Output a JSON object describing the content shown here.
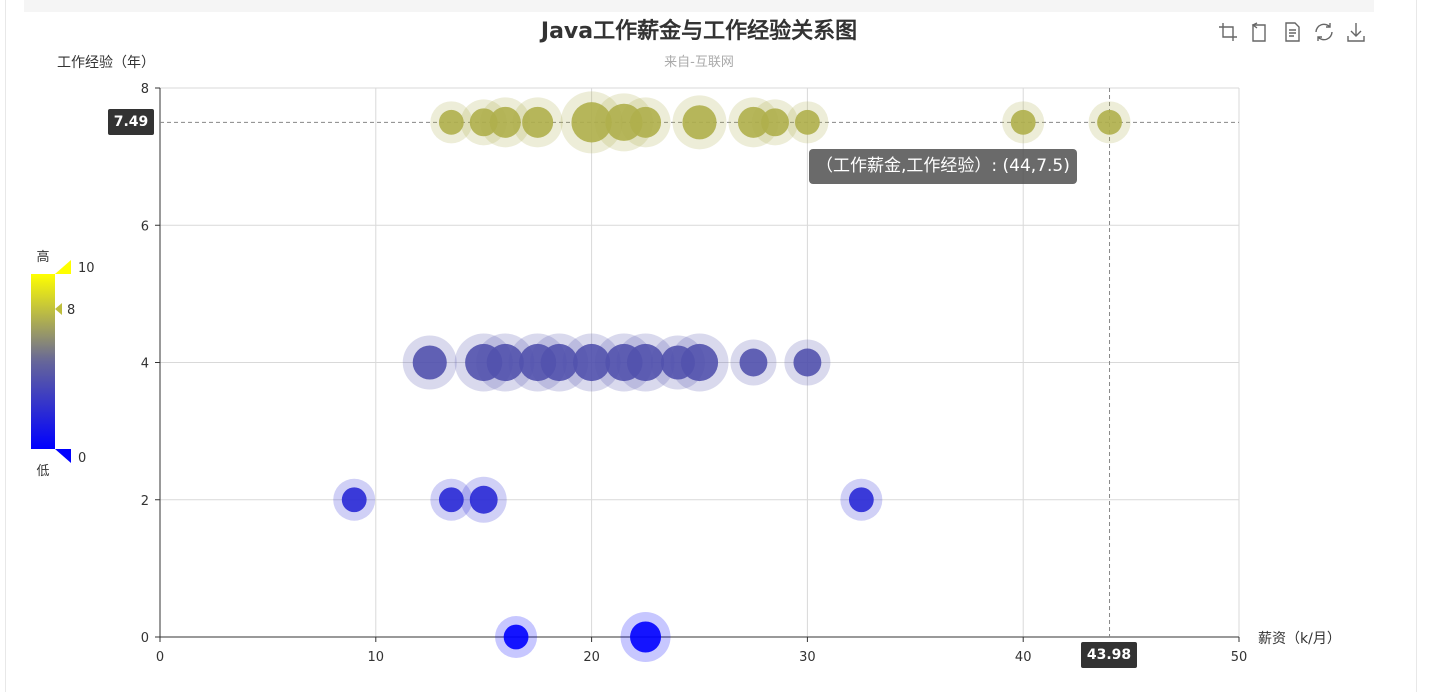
{
  "chart_data": {
    "type": "scatter",
    "title": "Java工作薪金与工作经验关系图",
    "subtitle": "来自-互联网",
    "xlabel": "薪资（k/月）",
    "ylabel": "工作经验（年）",
    "xlim": [
      0,
      50
    ],
    "ylim": [
      0,
      8
    ],
    "xticks": [
      "0",
      "10",
      "20",
      "30",
      "40",
      "50"
    ],
    "yticks": [
      "0",
      "2",
      "4",
      "6",
      "8"
    ],
    "grid": true,
    "series": [
      {
        "points": [
          [
            16.5,
            0,
            8
          ],
          [
            22.5,
            0,
            10
          ],
          [
            9,
            2,
            8
          ],
          [
            13.5,
            2,
            8
          ],
          [
            15,
            2,
            9
          ],
          [
            32.5,
            2,
            8
          ],
          [
            12.5,
            4,
            11
          ],
          [
            15,
            4,
            12
          ],
          [
            16,
            4,
            12
          ],
          [
            17.5,
            4,
            12
          ],
          [
            18.5,
            4,
            12
          ],
          [
            20,
            4,
            12
          ],
          [
            21.5,
            4,
            12
          ],
          [
            22.5,
            4,
            12
          ],
          [
            24,
            4,
            11
          ],
          [
            25,
            4,
            12
          ],
          [
            27.5,
            4,
            9
          ],
          [
            30,
            4,
            9
          ],
          [
            13.5,
            7.5,
            8
          ],
          [
            15,
            7.5,
            9
          ],
          [
            16,
            7.5,
            10
          ],
          [
            17.5,
            7.5,
            10
          ],
          [
            20,
            7.5,
            13
          ],
          [
            21.5,
            7.5,
            12
          ],
          [
            22.5,
            7.5,
            10
          ],
          [
            25,
            7.5,
            11
          ],
          [
            27.5,
            7.5,
            10
          ],
          [
            28.5,
            7.5,
            9
          ],
          [
            30,
            7.5,
            8
          ],
          [
            40,
            7.5,
            8
          ],
          [
            44,
            7.5,
            8
          ]
        ]
      }
    ],
    "visual_map": {
      "min": 0,
      "max": 10,
      "high_label": "高",
      "low_label": "低",
      "max_label": "10",
      "min_label": "0",
      "current_value": 8,
      "current_label": "8",
      "colors": [
        "#0000ff",
        "#666699",
        "#ffff00"
      ]
    },
    "crosshair": {
      "x_value": 44,
      "y_value": 7.5,
      "x_label": "43.98",
      "y_label": "7.49"
    },
    "tooltip": {
      "text": "（工作薪金,工作经验）: (44,7.5)"
    },
    "toolbox": [
      {
        "name": "zoom-icon"
      },
      {
        "name": "zoom-reset-icon"
      },
      {
        "name": "data-view-icon"
      },
      {
        "name": "restore-icon"
      },
      {
        "name": "save-image-icon"
      }
    ]
  }
}
